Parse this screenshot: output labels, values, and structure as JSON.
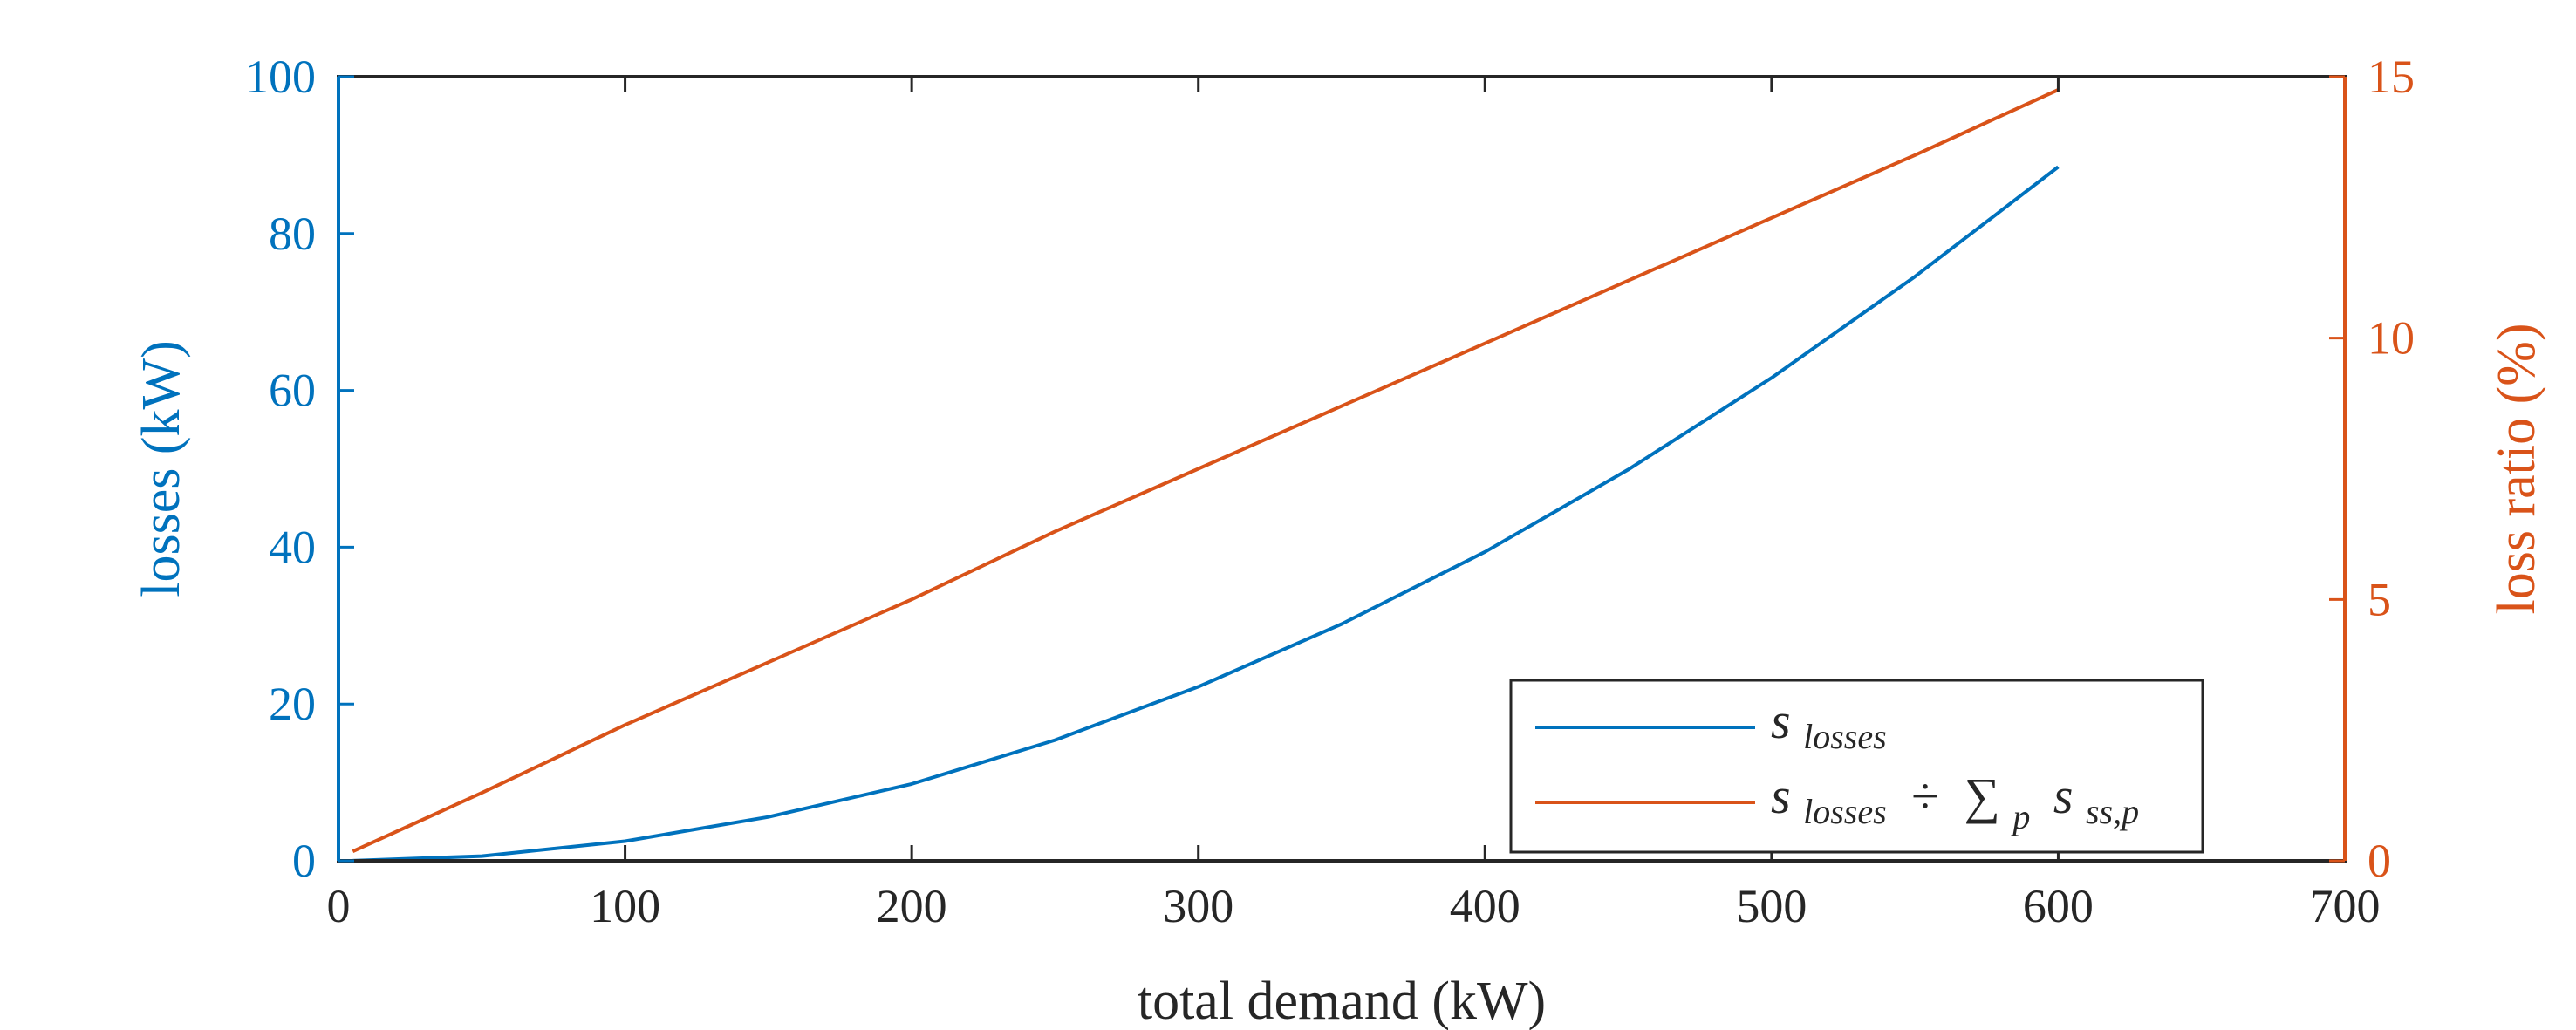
{
  "chart_data": {
    "type": "line",
    "xlabel": "total demand (kW)",
    "ylabel_left": "losses (kW)",
    "ylabel_right": "loss ratio (%)",
    "xlim": [
      0,
      700
    ],
    "ylim_left": [
      0,
      100
    ],
    "ylim_right": [
      0,
      15
    ],
    "xticks": [
      "0",
      "100",
      "200",
      "300",
      "400",
      "500",
      "600",
      "700"
    ],
    "yticks_left": [
      "0",
      "20",
      "40",
      "60",
      "80",
      "100"
    ],
    "yticks_right": [
      "0",
      "5",
      "10",
      "15"
    ],
    "grid": false,
    "legend_position": "bottom-right",
    "colors": {
      "left": "#0072BD",
      "right": "#D95319",
      "axes": "#262626"
    },
    "series": [
      {
        "name": "s_losses",
        "axis": "left",
        "color": "#0072BD",
        "x": [
          5,
          50,
          100,
          150,
          200,
          250,
          300,
          350,
          400,
          450,
          500,
          550,
          600
        ],
        "y": [
          0.01,
          0.6,
          2.5,
          5.6,
          9.8,
          15.4,
          22.2,
          30.2,
          39.4,
          49.9,
          61.6,
          74.5,
          88.5
        ]
      },
      {
        "name": "s_losses ÷ Σ_p s_ss,p",
        "axis": "right",
        "color": "#D95319",
        "x": [
          5,
          50,
          100,
          150,
          200,
          250,
          300,
          350,
          400,
          450,
          500,
          550,
          600
        ],
        "y": [
          0.18,
          1.3,
          2.6,
          3.8,
          5.0,
          6.3,
          7.5,
          8.7,
          9.9,
          11.1,
          12.3,
          13.5,
          14.75
        ]
      }
    ],
    "legend": {
      "entry1": {
        "base": "s",
        "sub": "losses"
      },
      "entry2": {
        "base": "s",
        "sub": "losses",
        "op": "÷",
        "sum": "∑",
        "sum_sub": "p",
        "base2": "s",
        "sub2": "ss,p"
      }
    }
  }
}
